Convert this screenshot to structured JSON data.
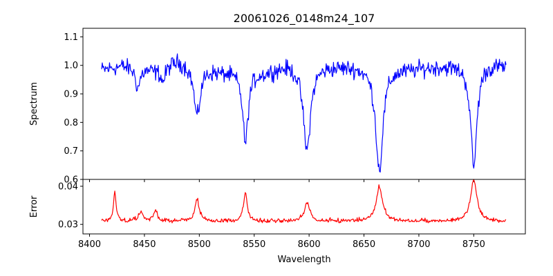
{
  "chart_data": [
    {
      "type": "line",
      "panel": "top",
      "title": "20061026_0148m24_107",
      "xlabel": "",
      "ylabel": "Spectrum",
      "xlim": [
        8394,
        8797
      ],
      "ylim": [
        0.6,
        1.13
      ],
      "xticks": [
        8400,
        8450,
        8500,
        8550,
        8600,
        8650,
        8700,
        8750
      ],
      "xtick_labels": [],
      "yticks": [
        0.6,
        0.7,
        0.8,
        0.9,
        1.0,
        1.1
      ],
      "ytick_labels": [
        "0.6",
        "0.7",
        "0.8",
        "0.9",
        "1.0",
        "1.1"
      ],
      "grid": false,
      "series": [
        {
          "color": "#0000ff",
          "x_start": 8411,
          "x_end": 8780,
          "continuum": [
            [
              8411,
              0.985
            ],
            [
              8430,
              1.0
            ],
            [
              8460,
              0.985
            ],
            [
              8480,
              1.02
            ],
            [
              8520,
              0.98
            ],
            [
              8560,
              0.98
            ],
            [
              8580,
              1.005
            ],
            [
              8620,
              1.0
            ],
            [
              8640,
              1.0
            ],
            [
              8690,
              0.99
            ],
            [
              8720,
              1.0
            ],
            [
              8760,
              1.01
            ],
            [
              8780,
              1.0
            ]
          ],
          "absorption_lines": [
            {
              "center": 8444,
              "depth": 0.07,
              "width": 2.5
            },
            {
              "center": 8467,
              "depth": 0.05,
              "width": 2.5
            },
            {
              "center": 8498,
              "depth": 0.18,
              "width": 3.5
            },
            {
              "center": 8542,
              "depth": 0.25,
              "width": 3.0
            },
            {
              "center": 8598,
              "depth": 0.3,
              "width": 4.0
            },
            {
              "center": 8664,
              "depth": 0.36,
              "width": 4.0
            },
            {
              "center": 8750,
              "depth": 0.36,
              "width": 3.5
            }
          ],
          "noise": 0.025
        }
      ]
    },
    {
      "type": "line",
      "panel": "bottom",
      "title": "",
      "xlabel": "Wavelength",
      "ylabel": "Error",
      "xlim": [
        8394,
        8797
      ],
      "ylim": [
        0.0275,
        0.0418
      ],
      "xticks": [
        8400,
        8450,
        8500,
        8550,
        8600,
        8650,
        8700,
        8750
      ],
      "xtick_labels": [
        "8400",
        "8450",
        "8500",
        "8550",
        "8600",
        "8650",
        "8700",
        "8750"
      ],
      "yticks": [
        0.03,
        0.04
      ],
      "ytick_labels": [
        "0.03",
        "0.04"
      ],
      "grid": false,
      "series": [
        {
          "color": "#ff0000",
          "x_start": 8411,
          "x_end": 8780,
          "baseline": 0.0305,
          "peaks": [
            {
              "center": 8423,
              "height": 0.0075,
              "width": 1.5
            },
            {
              "center": 8447,
              "height": 0.0025,
              "width": 2.5
            },
            {
              "center": 8460,
              "height": 0.0028,
              "width": 2.0
            },
            {
              "center": 8498,
              "height": 0.0055,
              "width": 2.5
            },
            {
              "center": 8542,
              "height": 0.0078,
              "width": 2.0
            },
            {
              "center": 8598,
              "height": 0.005,
              "width": 3.0
            },
            {
              "center": 8664,
              "height": 0.009,
              "width": 3.5
            },
            {
              "center": 8750,
              "height": 0.0108,
              "width": 3.5
            }
          ],
          "noise": 0.0008
        }
      ]
    }
  ]
}
